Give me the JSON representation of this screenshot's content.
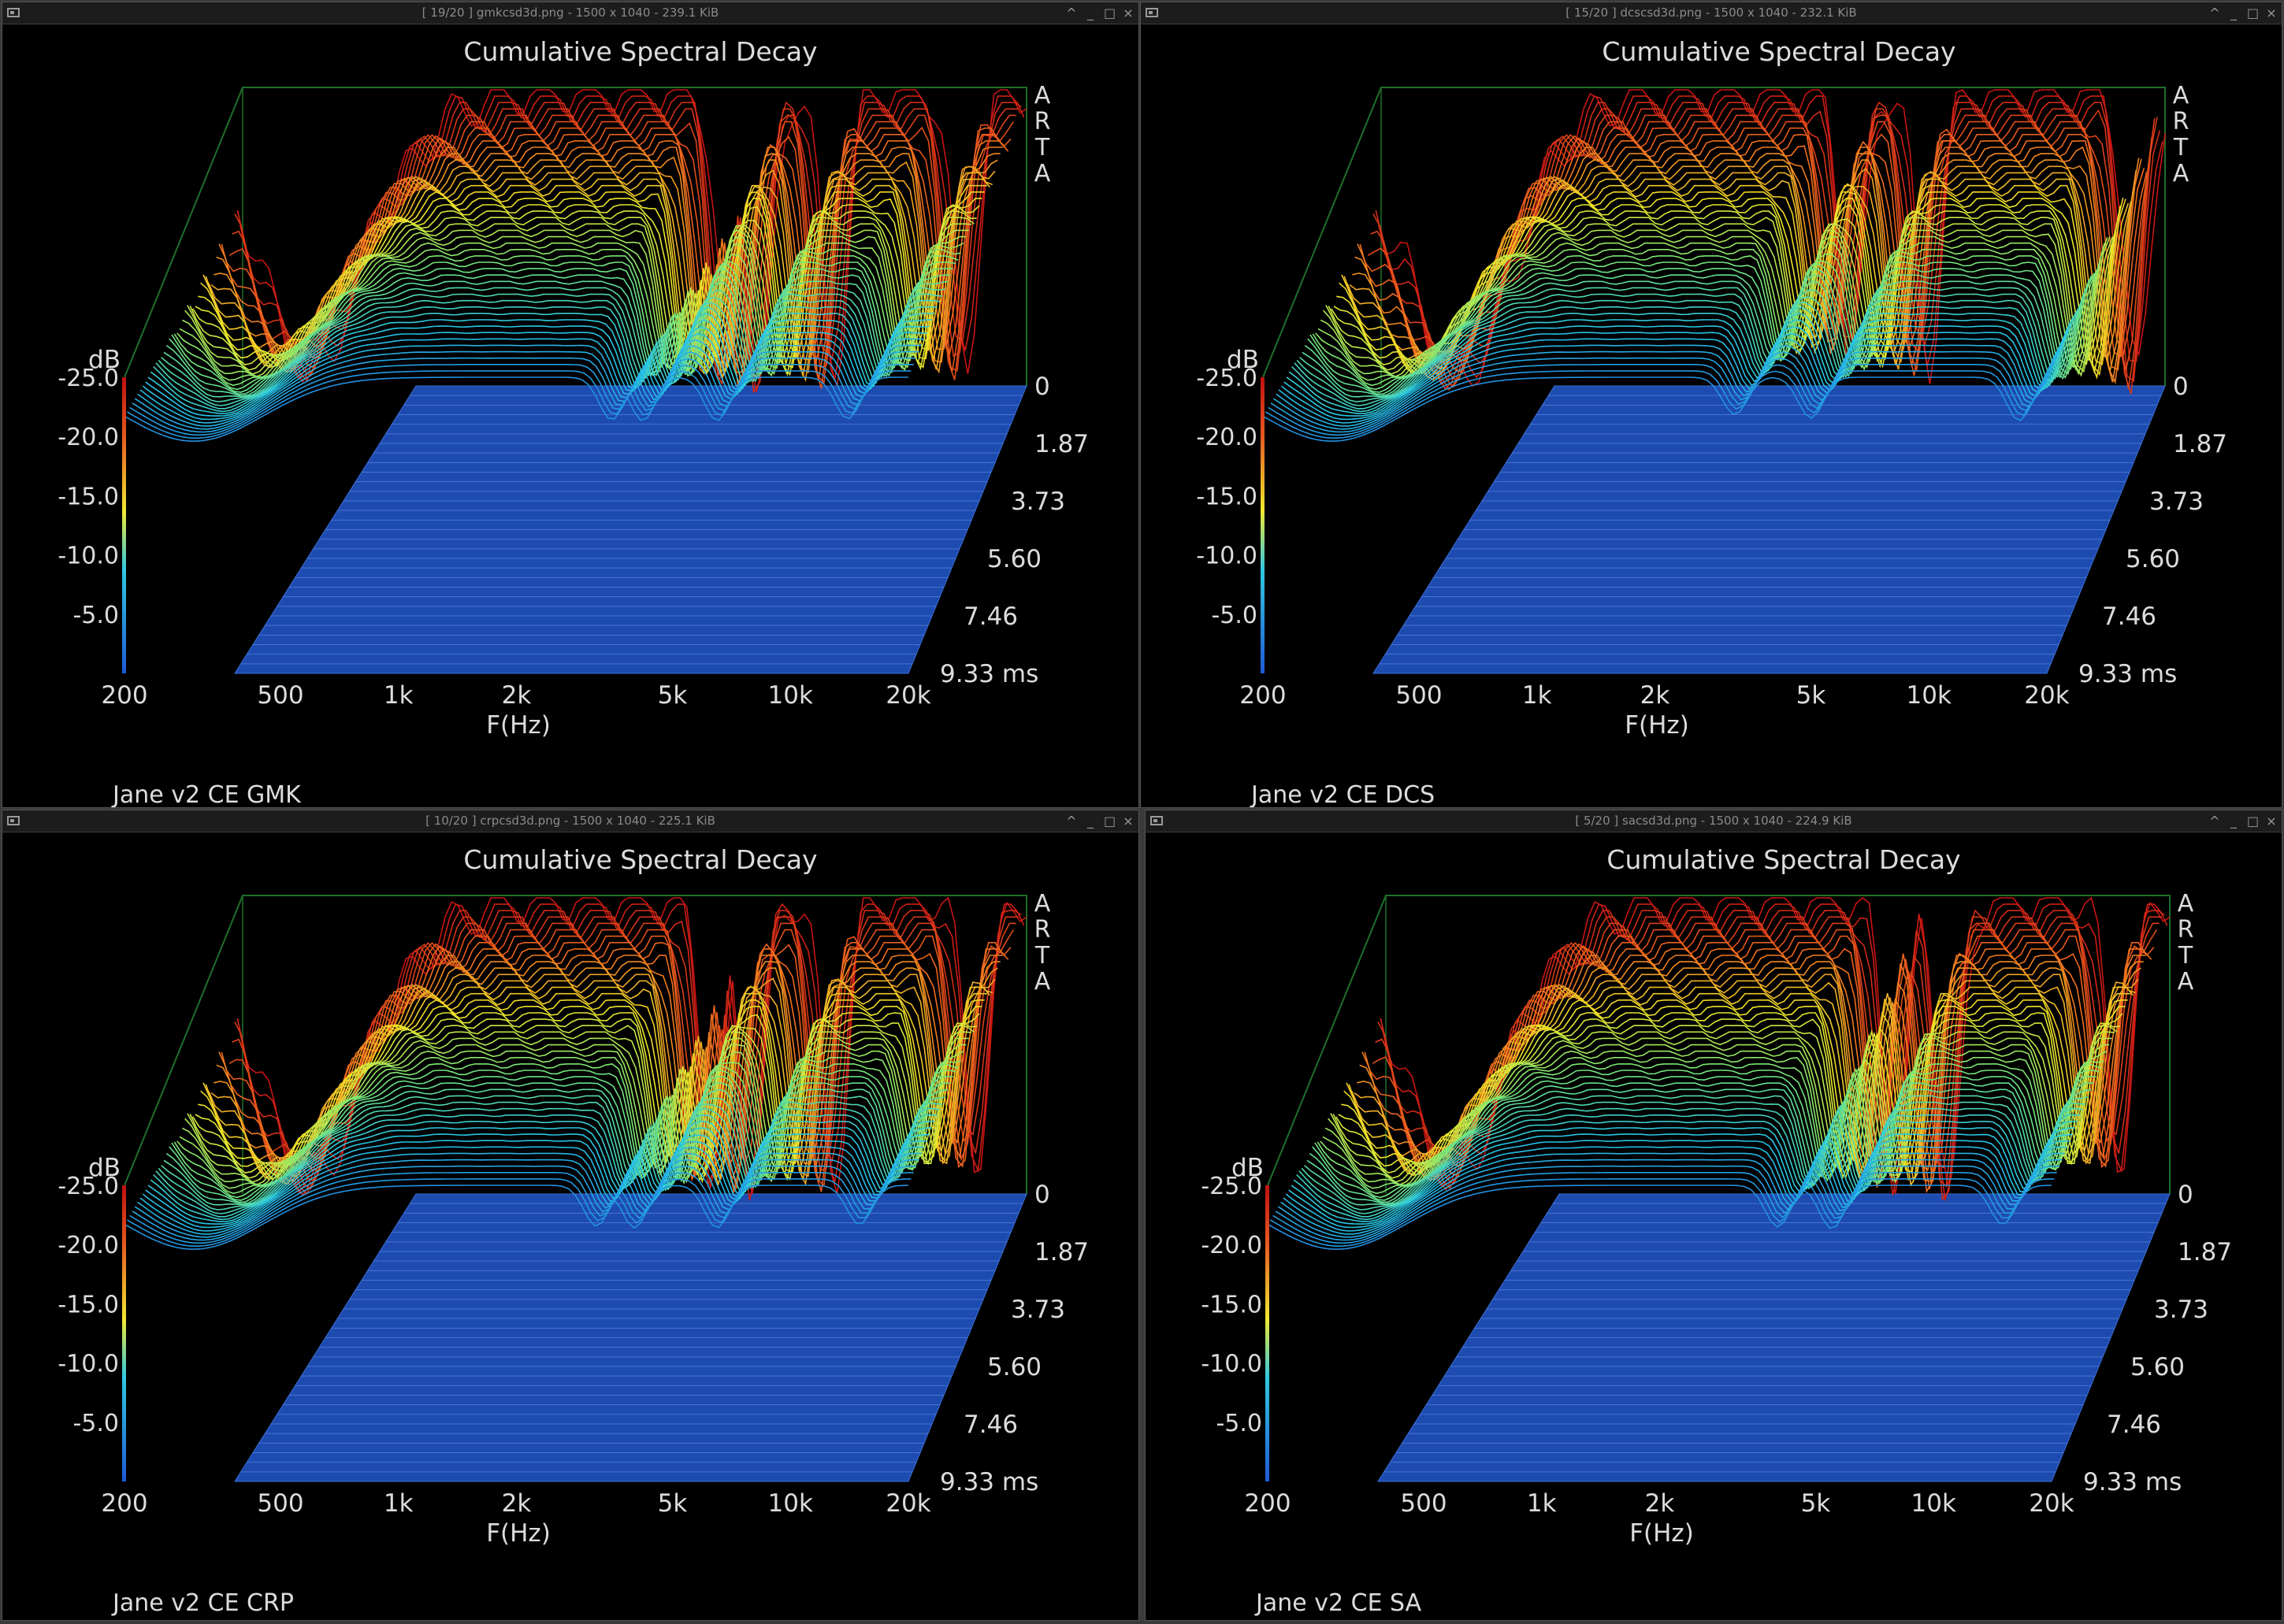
{
  "windows": [
    {
      "key": "tl",
      "title": "[ 19/20 ]  gmkcsd3d.png  -  1500 x 1040  -  239.1 KiB"
    },
    {
      "key": "tr",
      "title": "[ 15/20 ]  dcscsd3d.png  -  1500 x 1040  -  232.1 KiB"
    },
    {
      "key": "bl",
      "title": "[ 10/20 ]  crpcsd3d.png  -  1500 x 1040  -  225.1 KiB"
    },
    {
      "key": "br",
      "title": "[ 5/20 ]  sacsd3d.png  -  1500 x 1040  -  224.9 KiB"
    }
  ],
  "window_controls": [
    "^",
    "_",
    "□",
    "×"
  ],
  "chart_data": [
    {
      "type": "waterfall-3d",
      "title": "Cumulative Spectral Decay",
      "xlabel": "F(Hz)",
      "ylabel": "dB",
      "zlabel": "ms",
      "x_ticks": [
        "200",
        "500",
        "1k",
        "2k",
        "5k",
        "10k",
        "20k"
      ],
      "x_values": [
        200,
        500,
        1000,
        2000,
        5000,
        10000,
        20000
      ],
      "y_ticks": [
        "-5.0",
        "-10.0",
        "-15.0",
        "-20.0",
        "-25.0"
      ],
      "y_range": [
        -25,
        0
      ],
      "z_ticks": [
        "0",
        "1.87",
        "3.73",
        "5.60",
        "7.46",
        "9.33 ms"
      ],
      "z_values": [
        0,
        1.87,
        3.73,
        5.6,
        7.46,
        9.33
      ],
      "watermark": [
        "A",
        "R",
        "T",
        "A"
      ],
      "caption": "Jane v2 CE GMK",
      "peaks_db": [
        {
          "f": 300,
          "db": -2
        },
        {
          "f": 3500,
          "db": -1
        },
        {
          "f": 4200,
          "db": -0.5
        },
        {
          "f": 6500,
          "db": -0.5
        },
        {
          "f": 14000,
          "db": -1.5
        }
      ]
    },
    {
      "type": "waterfall-3d",
      "title": "Cumulative Spectral Decay",
      "xlabel": "F(Hz)",
      "ylabel": "dB",
      "zlabel": "ms",
      "x_ticks": [
        "200",
        "500",
        "1k",
        "2k",
        "5k",
        "10k",
        "20k"
      ],
      "x_values": [
        200,
        500,
        1000,
        2000,
        5000,
        10000,
        20000
      ],
      "y_ticks": [
        "-5.0",
        "-10.0",
        "-15.0",
        "-20.0",
        "-25.0"
      ],
      "y_range": [
        -25,
        0
      ],
      "z_ticks": [
        "0",
        "1.87",
        "3.73",
        "5.60",
        "7.46",
        "9.33 ms"
      ],
      "z_values": [
        0,
        1.87,
        3.73,
        5.6,
        7.46,
        9.33
      ],
      "watermark": [
        "A",
        "R",
        "T",
        "A"
      ],
      "caption": "Jane v2 CE DCS",
      "peaks_db": [
        {
          "f": 320,
          "db": -1
        },
        {
          "f": 3200,
          "db": -4
        },
        {
          "f": 5000,
          "db": -2
        },
        {
          "f": 17000,
          "db": -0.5
        }
      ]
    },
    {
      "type": "waterfall-3d",
      "title": "Cumulative Spectral Decay",
      "xlabel": "F(Hz)",
      "ylabel": "dB",
      "zlabel": "ms",
      "x_ticks": [
        "200",
        "500",
        "1k",
        "2k",
        "5k",
        "10k",
        "20k"
      ],
      "x_values": [
        200,
        500,
        1000,
        2000,
        5000,
        10000,
        20000
      ],
      "y_ticks": [
        "-5.0",
        "-10.0",
        "-15.0",
        "-20.0",
        "-25.0"
      ],
      "y_range": [
        -25,
        0
      ],
      "z_ticks": [
        "0",
        "1.87",
        "3.73",
        "5.60",
        "7.46",
        "9.33 ms"
      ],
      "z_values": [
        0,
        1.87,
        3.73,
        5.6,
        7.46,
        9.33
      ],
      "watermark": [
        "A",
        "R",
        "T",
        "A"
      ],
      "caption": "Jane v2 CE CRP",
      "peaks_db": [
        {
          "f": 300,
          "db": -1.5
        },
        {
          "f": 3200,
          "db": -2
        },
        {
          "f": 4000,
          "db": -1
        },
        {
          "f": 6500,
          "db": -1
        },
        {
          "f": 15000,
          "db": -3
        }
      ]
    },
    {
      "type": "waterfall-3d",
      "title": "Cumulative Spectral Decay",
      "xlabel": "F(Hz)",
      "ylabel": "dB",
      "zlabel": "ms",
      "x_ticks": [
        "200",
        "500",
        "1k",
        "2k",
        "5k",
        "10k",
        "20k"
      ],
      "x_values": [
        200,
        500,
        1000,
        2000,
        5000,
        10000,
        20000
      ],
      "y_ticks": [
        "-5.0",
        "-10.0",
        "-15.0",
        "-20.0",
        "-25.0"
      ],
      "y_range": [
        -25,
        0
      ],
      "z_ticks": [
        "0",
        "1.87",
        "3.73",
        "5.60",
        "7.46",
        "9.33 ms"
      ],
      "z_values": [
        0,
        1.87,
        3.73,
        5.6,
        7.46,
        9.33
      ],
      "watermark": [
        "A",
        "R",
        "T",
        "A"
      ],
      "caption": "Jane v2 CE SA",
      "peaks_db": [
        {
          "f": 300,
          "db": -2
        },
        {
          "f": 4000,
          "db": -1.5
        },
        {
          "f": 5500,
          "db": -0.5
        },
        {
          "f": 15000,
          "db": -3
        }
      ]
    }
  ]
}
